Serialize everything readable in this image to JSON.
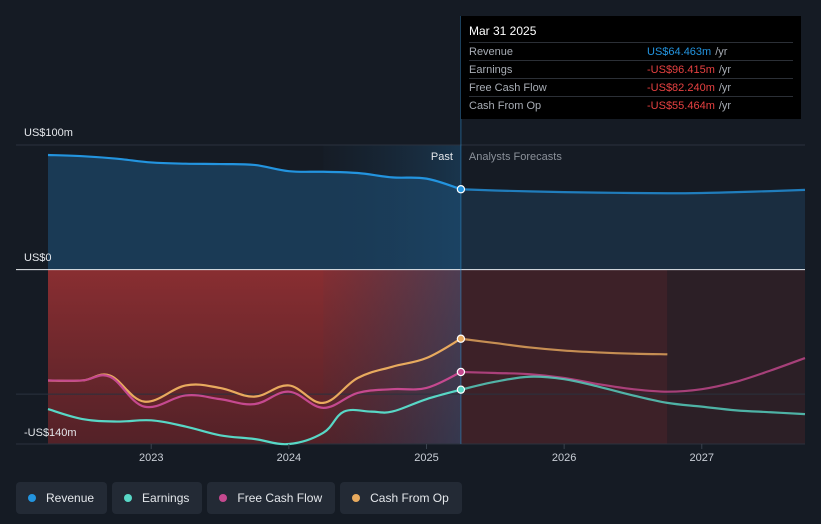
{
  "tooltip": {
    "date": "Mar 31 2025",
    "rows": [
      {
        "label": "Revenue",
        "value": "US$64.463m",
        "unit": "/yr",
        "color": "#2394df"
      },
      {
        "label": "Earnings",
        "value": "-US$96.415m",
        "unit": "/yr",
        "color": "#e64141"
      },
      {
        "label": "Free Cash Flow",
        "value": "-US$82.240m",
        "unit": "/yr",
        "color": "#e64141"
      },
      {
        "label": "Cash From Op",
        "value": "-US$55.464m",
        "unit": "/yr",
        "color": "#e64141"
      }
    ]
  },
  "legend": [
    {
      "label": "Revenue",
      "color": "#2394df"
    },
    {
      "label": "Earnings",
      "color": "#58d7c6"
    },
    {
      "label": "Free Cash Flow",
      "color": "#c5498f"
    },
    {
      "label": "Cash From Op",
      "color": "#e8aa5e"
    }
  ],
  "chart_data": {
    "type": "line",
    "title": "",
    "xlabel": "",
    "ylabel": "",
    "xlim": [
      2022.25,
      2027.75
    ],
    "ylim": [
      -140,
      100
    ],
    "y_tick_labels": [
      {
        "value": 100,
        "label": "US$100m"
      },
      {
        "value": 0,
        "label": "US$0"
      },
      {
        "value": -140,
        "label": "-US$140m"
      }
    ],
    "x_ticks": [
      {
        "value": 2023,
        "label": "2023"
      },
      {
        "value": 2024,
        "label": "2024"
      },
      {
        "value": 2025,
        "label": "2025"
      },
      {
        "value": 2026,
        "label": "2026"
      },
      {
        "value": 2027,
        "label": "2027"
      }
    ],
    "past_label": "Past",
    "forecast_label": "Analysts Forecasts",
    "divider_x": 2025.25,
    "highlight_start_x": 2024.25,
    "series": [
      {
        "name": "Revenue",
        "color": "#2394df",
        "past": [
          [
            2022.25,
            92
          ],
          [
            2022.5,
            91
          ],
          [
            2022.75,
            89
          ],
          [
            2023.0,
            86
          ],
          [
            2023.25,
            85
          ],
          [
            2023.5,
            84.7
          ],
          [
            2023.75,
            84
          ],
          [
            2024.0,
            79
          ],
          [
            2024.25,
            78.5
          ],
          [
            2024.5,
            77.5
          ],
          [
            2024.75,
            74
          ],
          [
            2025.0,
            73
          ],
          [
            2025.25,
            64.5
          ]
        ],
        "forecast": [
          [
            2025.25,
            64.5
          ],
          [
            2025.5,
            63.5
          ],
          [
            2025.75,
            62.8
          ],
          [
            2026.0,
            62.2
          ],
          [
            2026.25,
            61.8
          ],
          [
            2026.5,
            61.5
          ],
          [
            2026.75,
            61.3
          ],
          [
            2027.0,
            61.5
          ],
          [
            2027.25,
            62.2
          ],
          [
            2027.5,
            63
          ],
          [
            2027.75,
            64
          ]
        ]
      },
      {
        "name": "Earnings",
        "color": "#58d7c6",
        "past": [
          [
            2022.25,
            -112
          ],
          [
            2022.5,
            -120
          ],
          [
            2022.75,
            -122
          ],
          [
            2023.0,
            -121
          ],
          [
            2023.25,
            -126
          ],
          [
            2023.5,
            -133
          ],
          [
            2023.75,
            -136
          ],
          [
            2024.0,
            -140
          ],
          [
            2024.25,
            -131
          ],
          [
            2024.4,
            -114
          ],
          [
            2024.6,
            -114
          ],
          [
            2024.75,
            -114
          ],
          [
            2025.0,
            -104
          ],
          [
            2025.25,
            -96.4
          ]
        ],
        "forecast": [
          [
            2025.25,
            -96.4
          ],
          [
            2025.5,
            -90
          ],
          [
            2025.75,
            -86
          ],
          [
            2026.0,
            -88
          ],
          [
            2026.25,
            -94
          ],
          [
            2026.5,
            -101
          ],
          [
            2026.75,
            -107
          ],
          [
            2027.0,
            -110
          ],
          [
            2027.25,
            -113
          ],
          [
            2027.5,
            -114.5
          ],
          [
            2027.75,
            -116
          ]
        ]
      },
      {
        "name": "Free Cash Flow",
        "color": "#c5498f",
        "past": [
          [
            2022.25,
            -89
          ],
          [
            2022.5,
            -89
          ],
          [
            2022.7,
            -86
          ],
          [
            2022.95,
            -110
          ],
          [
            2023.25,
            -101
          ],
          [
            2023.5,
            -104
          ],
          [
            2023.75,
            -108
          ],
          [
            2024.0,
            -98
          ],
          [
            2024.25,
            -111
          ],
          [
            2024.5,
            -99
          ],
          [
            2024.75,
            -96
          ],
          [
            2025.0,
            -95
          ],
          [
            2025.25,
            -82.2
          ]
        ],
        "forecast": [
          [
            2025.25,
            -82.2
          ],
          [
            2025.5,
            -83
          ],
          [
            2025.75,
            -84
          ],
          [
            2026.0,
            -87
          ],
          [
            2026.25,
            -92
          ],
          [
            2026.5,
            -96
          ],
          [
            2026.75,
            -98
          ],
          [
            2027.0,
            -96
          ],
          [
            2027.25,
            -90
          ],
          [
            2027.5,
            -81
          ],
          [
            2027.75,
            -71
          ]
        ]
      },
      {
        "name": "Cash From Op",
        "color": "#e8aa5e",
        "past": [
          [
            2022.25,
            -89
          ],
          [
            2022.5,
            -89
          ],
          [
            2022.7,
            -85
          ],
          [
            2022.95,
            -106
          ],
          [
            2023.25,
            -93
          ],
          [
            2023.5,
            -95
          ],
          [
            2023.75,
            -102
          ],
          [
            2024.0,
            -93
          ],
          [
            2024.25,
            -107
          ],
          [
            2024.5,
            -87
          ],
          [
            2024.75,
            -78
          ],
          [
            2025.0,
            -71
          ],
          [
            2025.25,
            -55.5
          ]
        ],
        "forecast": [
          [
            2025.25,
            -55.5
          ],
          [
            2025.5,
            -59
          ],
          [
            2025.75,
            -62.5
          ],
          [
            2026.0,
            -65
          ],
          [
            2026.25,
            -66.5
          ],
          [
            2026.5,
            -67.5
          ],
          [
            2026.75,
            -68
          ]
        ]
      }
    ]
  }
}
